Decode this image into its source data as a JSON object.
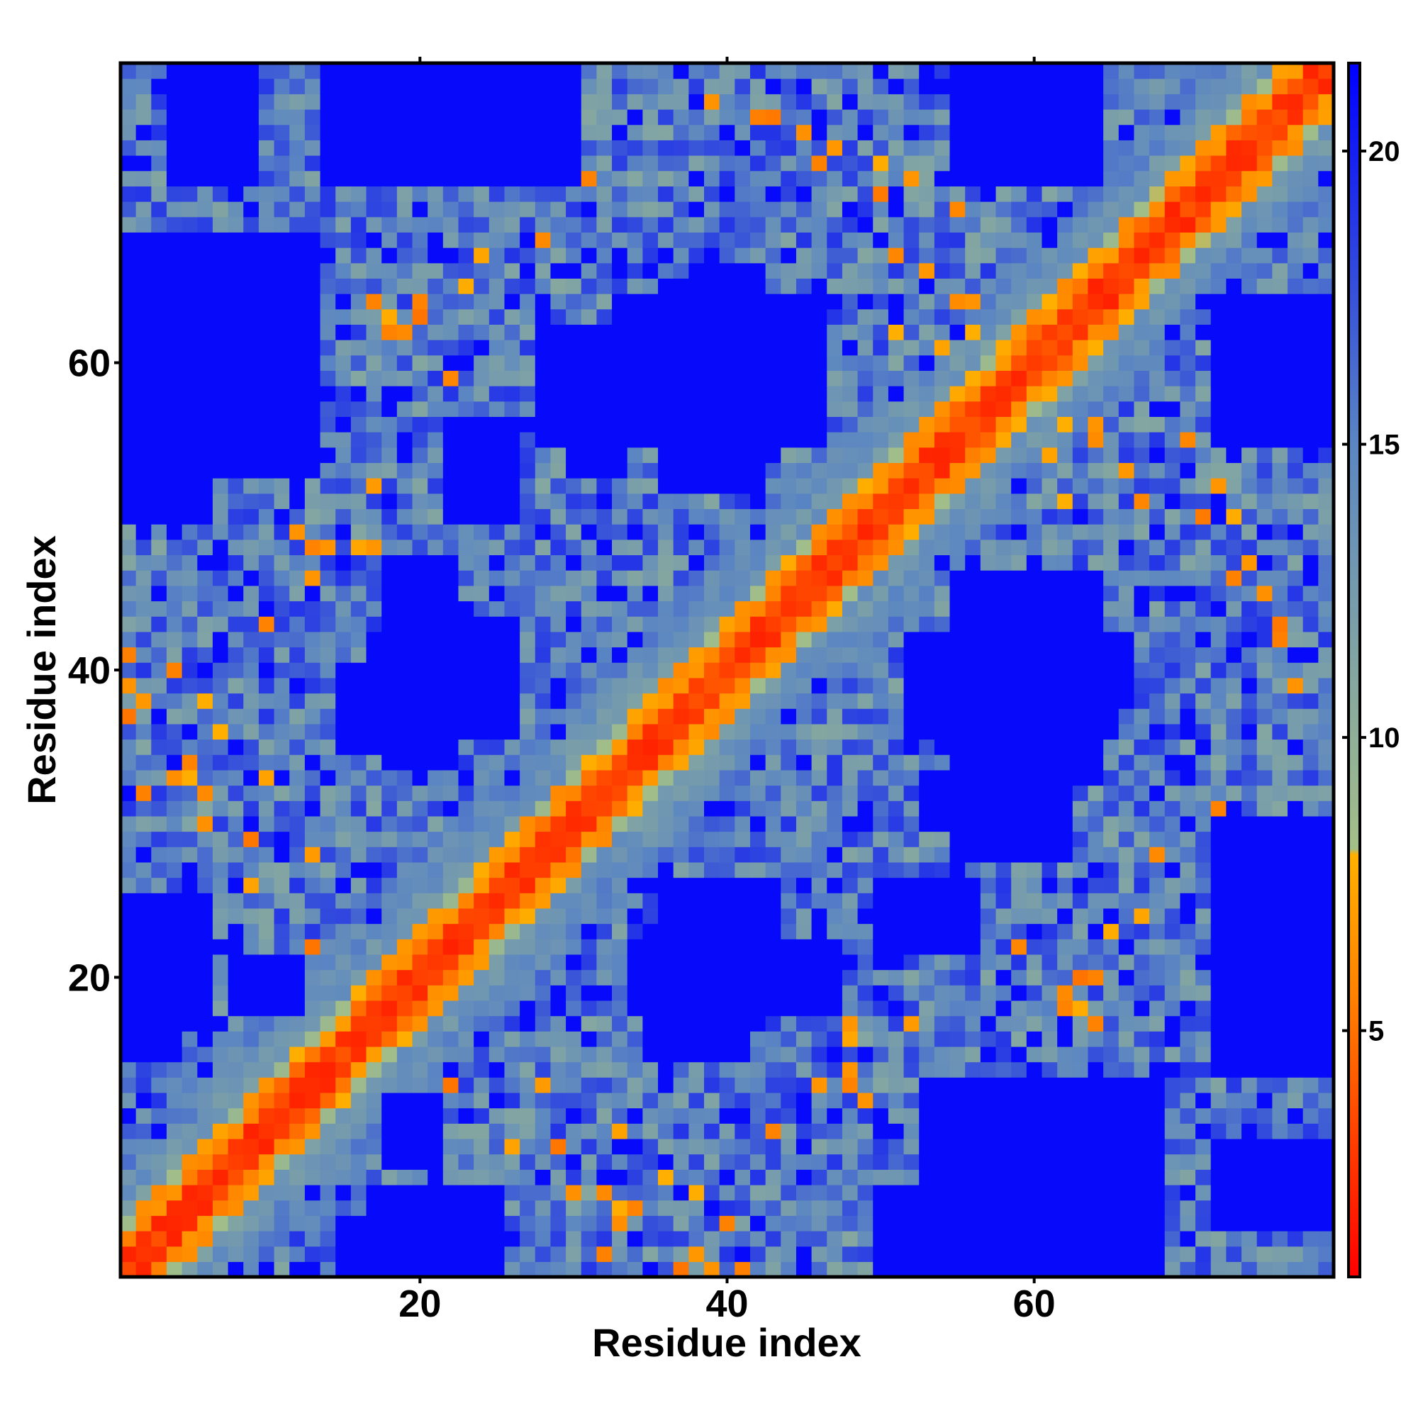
{
  "chart_data": {
    "type": "heatmap",
    "title": "",
    "xlabel": "Residue index",
    "ylabel": "Residue index",
    "n_residues": 79,
    "xlim": [
      0.5,
      79.5
    ],
    "ylim": [
      0.5,
      79.5
    ],
    "x_ticks": [
      20,
      40,
      60
    ],
    "y_ticks": [
      20,
      40,
      60
    ],
    "x_tick_labels": [
      "20",
      "40",
      "60"
    ],
    "y_tick_labels": [
      "20",
      "40",
      "60"
    ],
    "colorbar": {
      "range": [
        0.8,
        21.5
      ],
      "ticks": [
        5,
        10,
        15,
        20
      ],
      "tick_labels": [
        "5",
        "10",
        "15",
        "20"
      ],
      "stops": [
        {
          "value": 0.8,
          "color": "#ff0000"
        },
        {
          "value": 5.5,
          "color": "#ff7f00"
        },
        {
          "value": 8.0,
          "color": "#ffb000"
        },
        {
          "value": 8.1,
          "color": "#a3bf88"
        },
        {
          "value": 15.0,
          "color": "#5b86c2"
        },
        {
          "value": 21.5,
          "color": "#0000ff"
        }
      ]
    },
    "blue_threshold": 20.0,
    "blue_regions": [
      {
        "x": [
          1,
          13
        ],
        "y": [
          53,
          68
        ]
      },
      {
        "x": [
          1,
          6
        ],
        "y": [
          17,
          25
        ]
      },
      {
        "x": [
          8,
          12
        ],
        "y": [
          18,
          21
        ]
      },
      {
        "x": [
          15,
          22
        ],
        "y": [
          1,
          4
        ]
      },
      {
        "x": [
          19,
          26
        ],
        "y": [
          36,
          43
        ]
      },
      {
        "x": [
          15,
          22
        ],
        "y": [
          35,
          40
        ]
      },
      {
        "x": [
          30,
          33
        ],
        "y": [
          53,
          62
        ]
      },
      {
        "x": [
          33,
          46
        ],
        "y": [
          55,
          64
        ]
      },
      {
        "x": [
          38,
          42
        ],
        "y": [
          52,
          66
        ]
      },
      {
        "x": [
          14,
          30
        ],
        "y": [
          72,
          79
        ]
      },
      {
        "x": [
          55,
          64
        ],
        "y": [
          72,
          79
        ]
      },
      {
        "x": [
          57,
          64
        ],
        "y": [
          35,
          45
        ]
      },
      {
        "x": [
          52,
          65
        ],
        "y": [
          36,
          42
        ]
      },
      {
        "x": [
          55,
          62
        ],
        "y": [
          28,
          35
        ]
      },
      {
        "x": [
          38,
          42
        ],
        "y": [
          17,
          26
        ]
      },
      {
        "x": [
          34,
          47
        ],
        "y": [
          18,
          22
        ]
      },
      {
        "x": [
          50,
          56
        ],
        "y": [
          22,
          26
        ]
      },
      {
        "x": [
          50,
          58
        ],
        "y": [
          1,
          6
        ]
      },
      {
        "x": [
          56,
          60
        ],
        "y": [
          6,
          12
        ]
      },
      {
        "x": [
          73,
          79
        ],
        "y": [
          55,
          63
        ]
      },
      {
        "x": [
          73,
          79
        ],
        "y": [
          14,
          29
        ]
      },
      {
        "x": [
          72,
          79
        ],
        "y": [
          4,
          9
        ]
      }
    ],
    "orange_spots": [
      {
        "i": 5,
        "j": 34
      },
      {
        "i": 4,
        "j": 33
      },
      {
        "i": 6,
        "j": 32
      },
      {
        "i": 7,
        "j": 36
      },
      {
        "i": 9,
        "j": 29
      },
      {
        "i": 10,
        "j": 33
      },
      {
        "i": 13,
        "j": 48
      },
      {
        "i": 14,
        "j": 48
      },
      {
        "i": 17,
        "j": 48
      },
      {
        "i": 18,
        "j": 63
      },
      {
        "i": 19,
        "j": 62
      },
      {
        "i": 20,
        "j": 64
      },
      {
        "i": 24,
        "j": 67
      },
      {
        "i": 28,
        "j": 68
      },
      {
        "i": 31,
        "j": 72
      },
      {
        "i": 39,
        "j": 77
      },
      {
        "i": 43,
        "j": 76
      },
      {
        "i": 47,
        "j": 74
      },
      {
        "i": 50,
        "j": 73
      },
      {
        "i": 52,
        "j": 72
      },
      {
        "i": 51,
        "j": 62
      },
      {
        "i": 55,
        "j": 64
      },
      {
        "i": 54,
        "j": 61
      },
      {
        "i": 60,
        "j": 58
      },
      {
        "i": 62,
        "j": 56
      },
      {
        "i": 64,
        "j": 56
      },
      {
        "i": 66,
        "j": 53
      },
      {
        "i": 67,
        "j": 51
      },
      {
        "i": 70,
        "j": 55
      },
      {
        "i": 71,
        "j": 50
      },
      {
        "i": 73,
        "j": 46
      },
      {
        "i": 75,
        "j": 45
      },
      {
        "i": 76,
        "j": 42
      },
      {
        "i": 77,
        "j": 39
      },
      {
        "i": 63,
        "j": 20
      },
      {
        "i": 62,
        "j": 18
      },
      {
        "i": 64,
        "j": 17
      },
      {
        "i": 65,
        "j": 23
      },
      {
        "i": 59,
        "j": 22
      },
      {
        "i": 30,
        "j": 6
      },
      {
        "i": 29,
        "j": 9
      },
      {
        "i": 33,
        "j": 5
      },
      {
        "i": 32,
        "j": 2
      },
      {
        "i": 38,
        "j": 6
      },
      {
        "i": 40,
        "j": 4
      },
      {
        "i": 43,
        "j": 10
      },
      {
        "i": 46,
        "j": 13
      },
      {
        "i": 49,
        "j": 12
      },
      {
        "i": 37,
        "j": 1
      },
      {
        "i": 39,
        "j": 1
      },
      {
        "i": 41,
        "j": 1
      },
      {
        "i": 48,
        "j": 16
      },
      {
        "i": 52,
        "j": 17
      },
      {
        "i": 26,
        "j": 9
      },
      {
        "i": 28,
        "j": 13
      },
      {
        "i": 22,
        "j": 13
      },
      {
        "i": 4,
        "j": 40
      },
      {
        "i": 2,
        "j": 38
      }
    ]
  }
}
